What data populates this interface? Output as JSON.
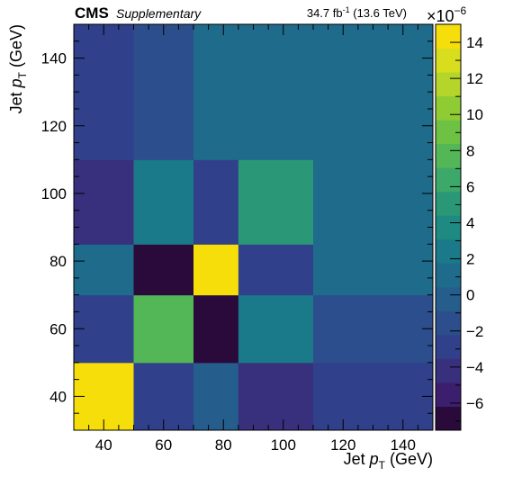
{
  "header": {
    "experiment": "CMS",
    "tag": "Supplementary",
    "lumi_prefix": "34.7 fb",
    "lumi_sup": "-1",
    "energy": "(13.6 TeV)"
  },
  "chart_data": {
    "type": "heatmap",
    "xlabel": "Jet p_T (GeV)",
    "xlabel_parts": {
      "pre": "Jet ",
      "var": "p",
      "sub": "T",
      "post": " (GeV)"
    },
    "ylabel": "Jet p_T (GeV)",
    "ylabel_parts": {
      "pre": "Jet ",
      "var": "p",
      "sub": "T",
      "post": " (GeV)"
    },
    "x_edges": [
      30,
      50,
      70,
      85,
      110,
      150
    ],
    "y_edges": [
      30,
      50,
      70,
      85,
      110,
      150
    ],
    "xlim": [
      30,
      150
    ],
    "ylim": [
      30,
      150
    ],
    "x_ticks": [
      40,
      60,
      80,
      100,
      120,
      140
    ],
    "y_ticks": [
      40,
      60,
      80,
      100,
      120,
      140
    ],
    "values_note": "rows from bottom (y bin 30-50) to top (y bin 110-150); columns left to right",
    "values": [
      [
        14.5,
        -3.0,
        0.0,
        -4.5,
        -2.5
      ],
      [
        -3.5,
        7.5,
        -7.5,
        2.5,
        -1.5
      ],
      [
        0.5,
        -7.5,
        14.5,
        -3.5,
        1.0
      ],
      [
        -4.5,
        2.0,
        -3.5,
        5.5,
        1.0
      ],
      [
        -2.5,
        -1.0,
        1.0,
        1.0,
        1.5
      ]
    ],
    "zlim": [
      -7.5,
      15
    ],
    "colorbar_ticks": [
      -6,
      -4,
      -2,
      0,
      2,
      4,
      6,
      8,
      10,
      12,
      14
    ],
    "colorbar_multiplier": "×10",
    "colorbar_exponent": "−6",
    "colormap": [
      "#2a0a3a",
      "#3b1f6e",
      "#38307d",
      "#30408a",
      "#2c4e8c",
      "#255d8d",
      "#1f6b8c",
      "#1a7a89",
      "#1e8a82",
      "#2a9876",
      "#3ca86a",
      "#53b657",
      "#6ec243",
      "#8fcb33",
      "#b5d52a",
      "#d8dd1d",
      "#f5de0a"
    ]
  }
}
